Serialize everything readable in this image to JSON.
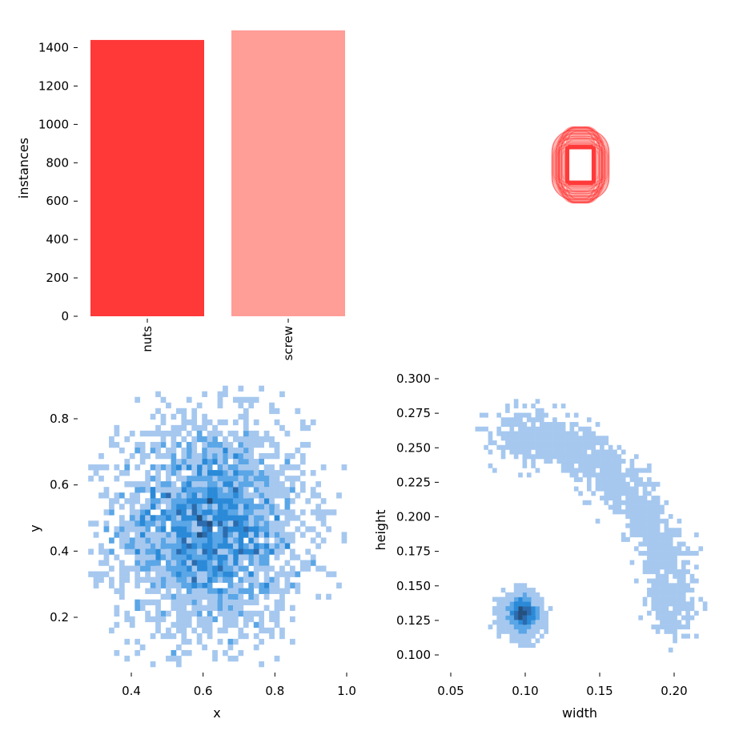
{
  "chart_data": [
    {
      "type": "bar",
      "categories": [
        "nuts",
        "screw"
      ],
      "values": [
        1440,
        1490
      ],
      "colors": [
        "#ff3838",
        "#ff9d97"
      ],
      "ylabel": "instances",
      "ylim": [
        0,
        1500
      ],
      "yticks": [
        0,
        200,
        400,
        600,
        800,
        1000,
        1200,
        1400
      ],
      "ytick_labels": [
        "0",
        "200",
        "400",
        "600",
        "800",
        "1000",
        "1200",
        "1400"
      ],
      "grid": false
    },
    {
      "type": "box-overlay",
      "description_colors": [
        "#ff3838",
        "#ff9d97"
      ],
      "boxes_width_range": [
        0.085,
        0.2
      ],
      "boxes_height_range": [
        0.1,
        0.28
      ]
    },
    {
      "type": "heatmap",
      "xlabel": "x",
      "ylabel": "y",
      "xlim": [
        0.28,
        1.02
      ],
      "ylim": [
        0.04,
        0.9
      ],
      "xticks": [
        0.4,
        0.6,
        0.8,
        1.0
      ],
      "xtick_labels": [
        "0.4",
        "0.6",
        "0.8",
        "1.0"
      ],
      "yticks": [
        0.2,
        0.4,
        0.6,
        0.8
      ],
      "ytick_labels": [
        "0.2",
        "0.4",
        "0.6",
        "0.8"
      ],
      "cluster": {
        "center": [
          0.62,
          0.47
        ],
        "spread": [
          0.13,
          0.16
        ],
        "count": 2930
      },
      "color": "#1f77b4"
    },
    {
      "type": "heatmap",
      "xlabel": "width",
      "ylabel": "height",
      "xlim": [
        0.05,
        0.225
      ],
      "ylim": [
        0.092,
        0.305
      ],
      "xticks": [
        0.05,
        0.1,
        0.15,
        0.2
      ],
      "xtick_labels": [
        "0.05",
        "0.10",
        "0.15",
        "0.20"
      ],
      "yticks": [
        0.1,
        0.125,
        0.15,
        0.175,
        0.2,
        0.225,
        0.25,
        0.275,
        0.3
      ],
      "ytick_labels": [
        "0.100",
        "0.125",
        "0.150",
        "0.175",
        "0.200",
        "0.225",
        "0.250",
        "0.275",
        "0.300"
      ],
      "clusters": [
        {
          "name": "nuts",
          "center": [
            0.098,
            0.13
          ],
          "spread": [
            0.006,
            0.007
          ],
          "count": 1440
        },
        {
          "name": "screw",
          "shape": "arc",
          "count": 1490
        }
      ],
      "color": "#1f77b4"
    }
  ]
}
